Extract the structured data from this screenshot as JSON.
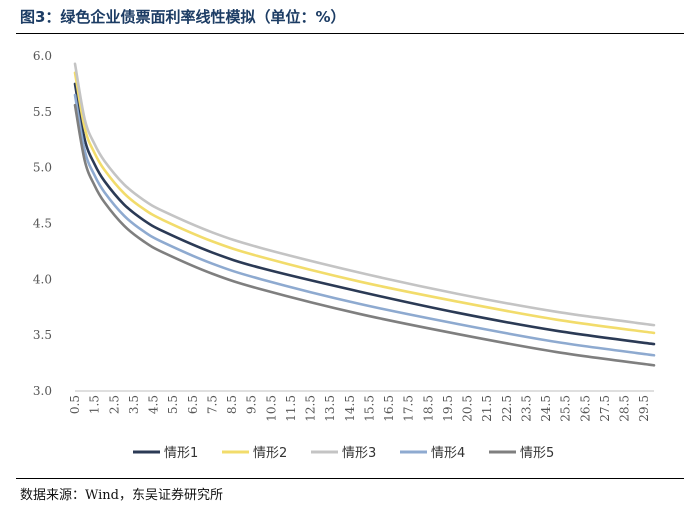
{
  "figure": {
    "title": "图3：绿色企业债票面利率线性模拟（单位：%）",
    "source": "数据来源：Wind，东吴证券研究所"
  },
  "chart_data": {
    "type": "line",
    "title": "图3：绿色企业债票面利率线性模拟（单位：%）",
    "xlabel": "",
    "ylabel": "",
    "ylim": [
      3.0,
      6.0
    ],
    "yticks": [
      "3.0",
      "3.5",
      "4.0",
      "4.5",
      "5.0",
      "5.5",
      "6.0"
    ],
    "xlim": [
      0.5,
      30.0
    ],
    "xticks": [
      "0.5",
      "1.5",
      "2.5",
      "3.5",
      "4.5",
      "5.5",
      "6.5",
      "7.5",
      "8.5",
      "9.5",
      "10.5",
      "11.5",
      "12.5",
      "13.5",
      "14.5",
      "15.5",
      "16.5",
      "17.5",
      "18.5",
      "19.5",
      "20.5",
      "21.5",
      "22.5",
      "23.5",
      "24.5",
      "25.5",
      "26.5",
      "27.5",
      "28.5",
      "29.5"
    ],
    "grid": false,
    "legend_position": "bottom",
    "series": [
      {
        "name": "情形1",
        "color": "#2b3a55",
        "x": [
          0.5,
          1,
          1.5,
          2,
          3,
          4,
          5,
          7.5,
          10,
          15,
          20,
          25,
          30
        ],
        "y": [
          5.75,
          5.25,
          5.03,
          4.88,
          4.67,
          4.53,
          4.43,
          4.24,
          4.1,
          3.89,
          3.7,
          3.54,
          3.42
        ]
      },
      {
        "name": "情形2",
        "color": "#f2dc6b",
        "x": [
          0.5,
          1,
          1.5,
          2,
          3,
          4,
          5,
          7.5,
          10,
          15,
          20,
          25,
          30
        ],
        "y": [
          5.85,
          5.35,
          5.13,
          4.98,
          4.77,
          4.63,
          4.53,
          4.34,
          4.2,
          3.98,
          3.8,
          3.64,
          3.52
        ]
      },
      {
        "name": "情形3",
        "color": "#c4c4c4",
        "x": [
          0.5,
          1,
          1.5,
          2,
          3,
          4,
          5,
          7.5,
          10,
          15,
          20,
          25,
          30
        ],
        "y": [
          5.93,
          5.43,
          5.21,
          5.06,
          4.85,
          4.71,
          4.61,
          4.42,
          4.28,
          4.06,
          3.87,
          3.71,
          3.59
        ]
      },
      {
        "name": "情形4",
        "color": "#8eaad0",
        "x": [
          0.5,
          1,
          1.5,
          2,
          3,
          4,
          5,
          7.5,
          10,
          15,
          20,
          25,
          30
        ],
        "y": [
          5.65,
          5.15,
          4.93,
          4.78,
          4.57,
          4.43,
          4.33,
          4.14,
          4.0,
          3.78,
          3.6,
          3.44,
          3.32
        ]
      },
      {
        "name": "情形5",
        "color": "#7f7f7f",
        "x": [
          0.5,
          1,
          1.5,
          2,
          3,
          4,
          5,
          7.5,
          10,
          15,
          20,
          25,
          30
        ],
        "y": [
          5.56,
          5.06,
          4.84,
          4.69,
          4.48,
          4.34,
          4.24,
          4.05,
          3.91,
          3.69,
          3.51,
          3.35,
          3.23
        ]
      }
    ]
  }
}
